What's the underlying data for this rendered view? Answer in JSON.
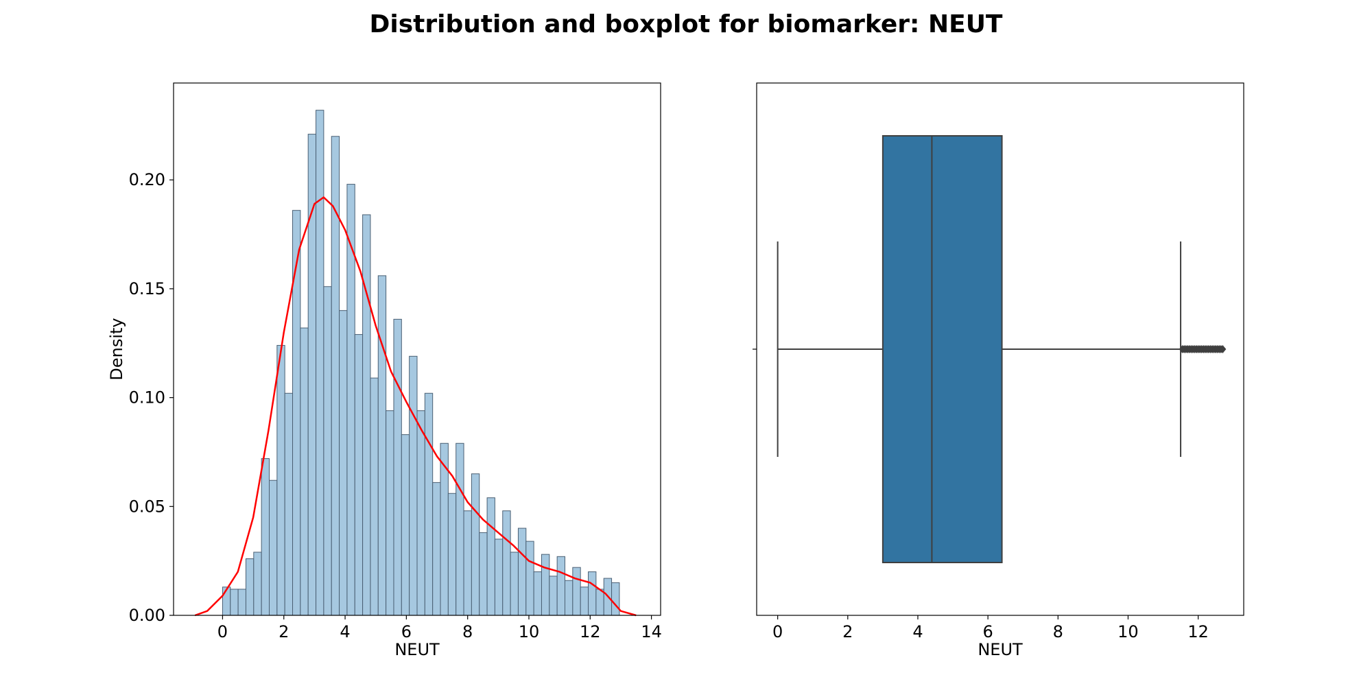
{
  "figure": {
    "title": "Distribution and boxplot for biomarker: NEUT"
  },
  "chart_data": [
    {
      "type": "bar",
      "subtype": "histogram with KDE",
      "xlabel": "NEUT",
      "ylabel": "Density",
      "xlim": [
        -1.6,
        14.3
      ],
      "ylim": [
        0,
        0.2445
      ],
      "xticks": [
        0,
        2,
        4,
        6,
        8,
        10,
        12,
        14
      ],
      "yticks": [
        0.0,
        0.05,
        0.1,
        0.15,
        0.2
      ],
      "ytick_labels": [
        "0.00",
        "0.05",
        "0.10",
        "0.15",
        "0.20"
      ],
      "bar_color": "#a6c8e0",
      "bar_edge_color": "#4a5f73",
      "kde_color": "#ff0000",
      "bins": {
        "start": 0.0,
        "width": 0.254,
        "densities": [
          0.013,
          0.012,
          0.012,
          0.026,
          0.029,
          0.072,
          0.062,
          0.124,
          0.102,
          0.186,
          0.132,
          0.221,
          0.232,
          0.151,
          0.22,
          0.14,
          0.198,
          0.129,
          0.184,
          0.109,
          0.156,
          0.094,
          0.136,
          0.083,
          0.119,
          0.094,
          0.102,
          0.061,
          0.079,
          0.056,
          0.079,
          0.048,
          0.065,
          0.038,
          0.054,
          0.035,
          0.048,
          0.029,
          0.04,
          0.034,
          0.02,
          0.028,
          0.018,
          0.027,
          0.016,
          0.022,
          0.013,
          0.02,
          0.012,
          0.017,
          0.015
        ]
      },
      "kde": {
        "x": [
          -0.9,
          -0.5,
          0,
          0.5,
          1.0,
          1.5,
          2.0,
          2.5,
          3.0,
          3.3,
          3.6,
          4.0,
          4.5,
          5.0,
          5.5,
          6.0,
          6.5,
          7.0,
          7.5,
          8.0,
          8.5,
          9.0,
          9.5,
          10.0,
          10.5,
          11.0,
          11.5,
          12.0,
          12.5,
          13.0,
          13.5
        ],
        "y": [
          0.0,
          0.002,
          0.009,
          0.02,
          0.045,
          0.085,
          0.13,
          0.168,
          0.189,
          0.192,
          0.188,
          0.177,
          0.158,
          0.133,
          0.112,
          0.098,
          0.085,
          0.073,
          0.064,
          0.052,
          0.044,
          0.038,
          0.032,
          0.025,
          0.022,
          0.02,
          0.017,
          0.015,
          0.01,
          0.002,
          0.0
        ]
      }
    },
    {
      "type": "boxplot",
      "xlabel": "NEUT",
      "xlim": [
        -0.6,
        13.3
      ],
      "xticks": [
        0,
        2,
        4,
        6,
        8,
        10,
        12
      ],
      "box_color": "#3274a1",
      "line_color": "#3f3f3f",
      "whisker_low": 0.0,
      "q1": 3.0,
      "median": 4.4,
      "q3": 6.4,
      "whisker_high": 11.5,
      "outliers": [
        11.55,
        11.6,
        11.65,
        11.7,
        11.75,
        11.8,
        11.85,
        11.9,
        11.95,
        12.0,
        12.05,
        12.1,
        12.15,
        12.2,
        12.25,
        12.3,
        12.35,
        12.4,
        12.45,
        12.5,
        12.55,
        12.6,
        12.65,
        12.7
      ]
    }
  ]
}
